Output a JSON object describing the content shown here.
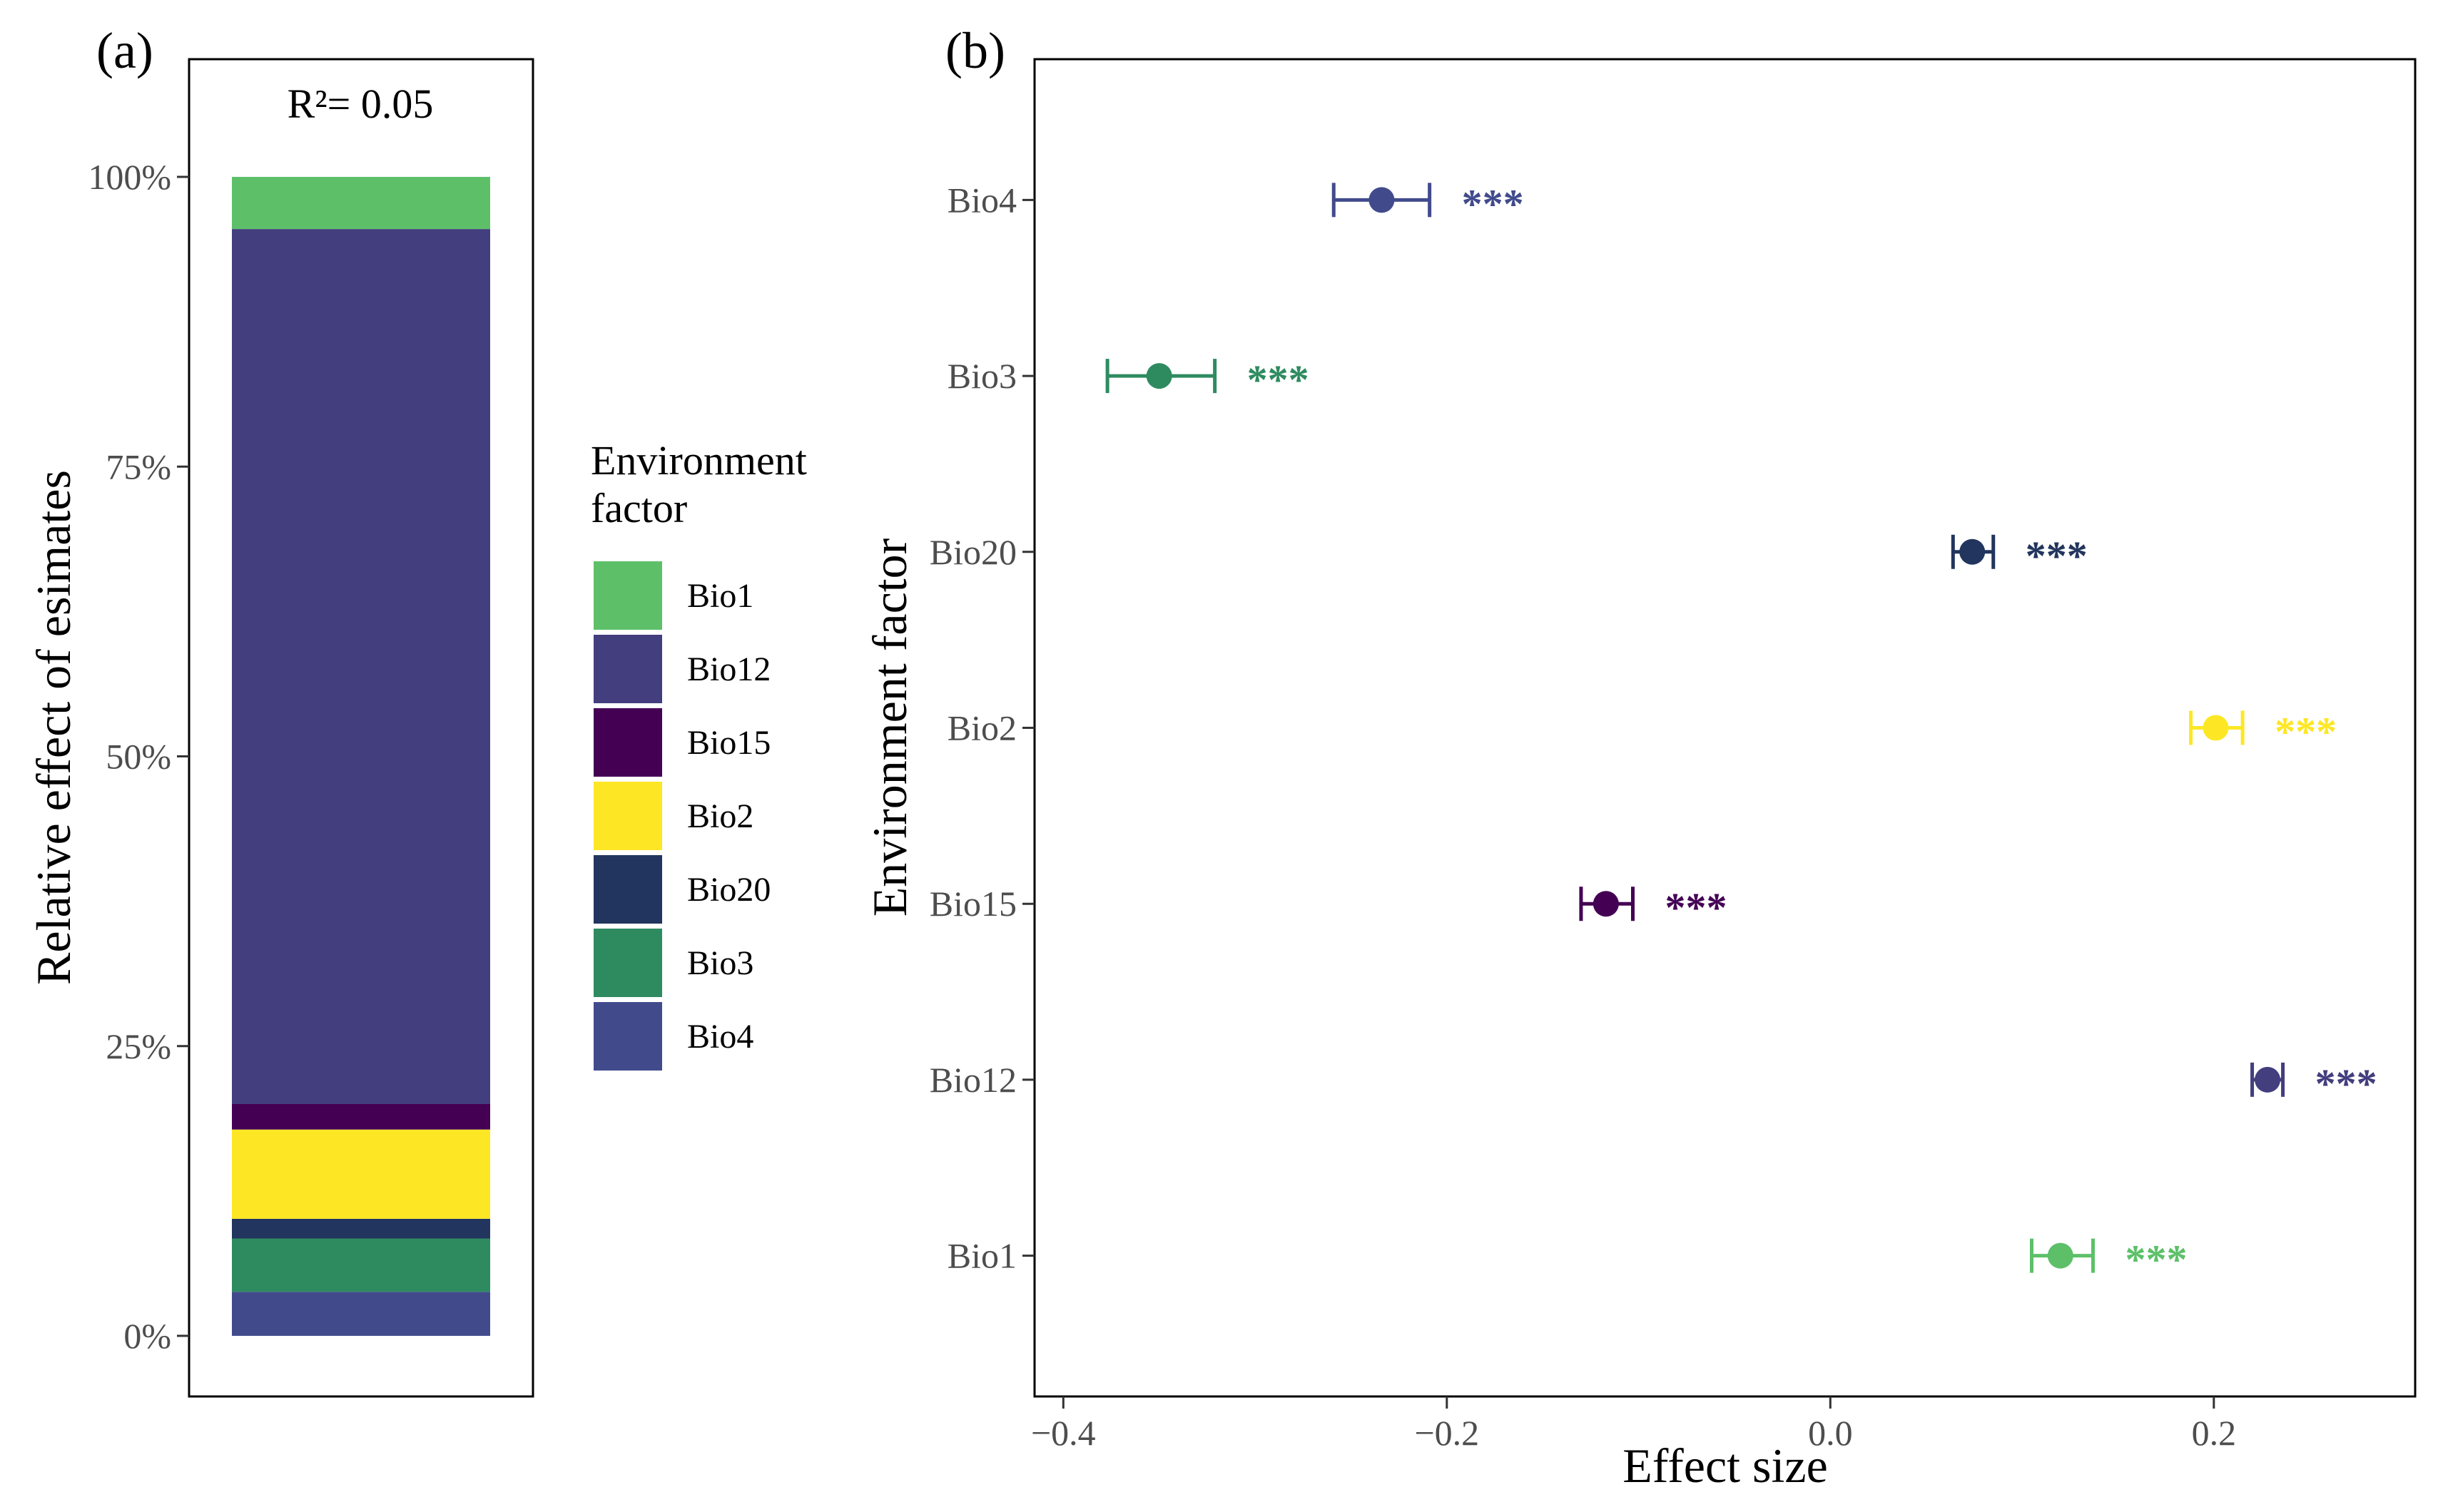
{
  "panel_a": {
    "tag": "(a)",
    "annotation": "R²= 0.05"
  },
  "panel_b": {
    "tag": "(b)"
  },
  "legend": {
    "title_line1": "Environment",
    "title_line2": "factor"
  },
  "chart_data": [
    {
      "type": "bar",
      "stacked": true,
      "ylabel": "Relative effect of esimates",
      "xlabel": "",
      "ylim": [
        0,
        100
      ],
      "yticks": [
        "0%",
        "25%",
        "50%",
        "75%",
        "100%"
      ],
      "yticks_values": [
        0,
        25,
        50,
        75,
        100
      ],
      "annotation": "R²= 0.05",
      "stack_order_bottom_to_top": [
        "Bio4",
        "Bio3",
        "Bio20",
        "Bio2",
        "Bio15",
        "Bio12",
        "Bio1"
      ],
      "series": [
        {
          "name": "Bio1",
          "value": 4.5,
          "color": "#5dc069"
        },
        {
          "name": "Bio12",
          "value": 75.5,
          "color": "#433e7e"
        },
        {
          "name": "Bio15",
          "value": 2.2,
          "color": "#440154"
        },
        {
          "name": "Bio2",
          "value": 7.7,
          "color": "#fde725"
        },
        {
          "name": "Bio20",
          "value": 1.7,
          "color": "#22355e"
        },
        {
          "name": "Bio3",
          "value": 4.6,
          "color": "#2e8b60"
        },
        {
          "name": "Bio4",
          "value": 3.8,
          "color": "#414b8c"
        }
      ],
      "legend": {
        "title": "Environment factor",
        "placement": "right",
        "entries": [
          "Bio1",
          "Bio12",
          "Bio15",
          "Bio2",
          "Bio20",
          "Bio3",
          "Bio4"
        ]
      }
    },
    {
      "type": "scatter",
      "subtype": "point-errorbar",
      "xlabel": "Effect size",
      "ylabel": "Environment factor",
      "xlim": [
        -0.415,
        0.305
      ],
      "xticks": [
        "−0.4",
        "−0.2",
        "0.0",
        "0.2"
      ],
      "xticks_values": [
        -0.4,
        -0.2,
        0.0,
        0.2
      ],
      "categories": [
        "Bio1",
        "Bio12",
        "Bio15",
        "Bio2",
        "Bio20",
        "Bio3",
        "Bio4"
      ],
      "points": [
        {
          "name": "Bio1",
          "estimate": 0.12,
          "lower": 0.105,
          "upper": 0.137,
          "significance": "***",
          "color": "#5dc069"
        },
        {
          "name": "Bio12",
          "estimate": 0.228,
          "lower": 0.22,
          "upper": 0.236,
          "significance": "***",
          "color": "#433e7e"
        },
        {
          "name": "Bio15",
          "estimate": -0.117,
          "lower": -0.13,
          "upper": -0.103,
          "significance": "***",
          "color": "#440154"
        },
        {
          "name": "Bio2",
          "estimate": 0.201,
          "lower": 0.188,
          "upper": 0.215,
          "significance": "***",
          "color": "#fde725"
        },
        {
          "name": "Bio20",
          "estimate": 0.074,
          "lower": 0.064,
          "upper": 0.085,
          "significance": "***",
          "color": "#22355e"
        },
        {
          "name": "Bio3",
          "estimate": -0.35,
          "lower": -0.377,
          "upper": -0.321,
          "significance": "***",
          "color": "#2e8b60"
        },
        {
          "name": "Bio4",
          "estimate": -0.234,
          "lower": -0.259,
          "upper": -0.209,
          "significance": "***",
          "color": "#414b8c"
        }
      ],
      "grid": false
    }
  ]
}
